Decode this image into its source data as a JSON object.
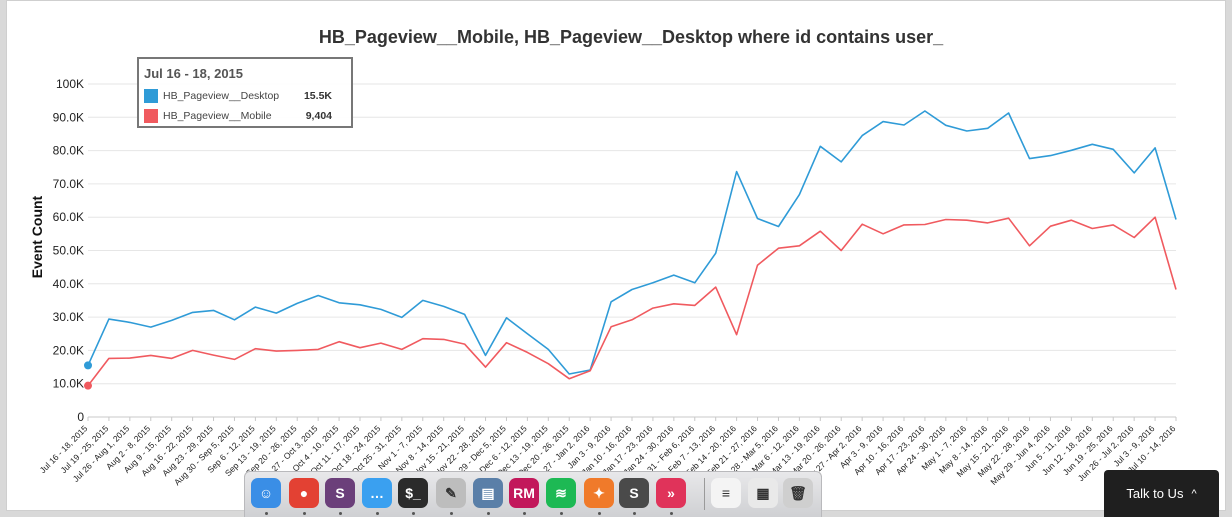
{
  "chart_data": {
    "type": "line",
    "title": "HB_Pageview__Mobile, HB_Pageview__Desktop where id contains user_",
    "ylabel": "Event Count",
    "xlabel": "",
    "ylim": [
      0,
      100000
    ],
    "yticks": [
      "0",
      "10.0K",
      "20.0K",
      "30.0K",
      "40.0K",
      "50.0K",
      "60.0K",
      "70.0K",
      "80.0K",
      "90.0K",
      "100K"
    ],
    "grid": true,
    "categories": [
      "Jul 16 - 18, 2015",
      "Jul 19 - 25, 2015",
      "Jul 26 - Aug 1, 2015",
      "Aug 2 - 8, 2015",
      "Aug 9 - 15, 2015",
      "Aug 16 - 22, 2015",
      "Aug 23 - 29, 2015",
      "Aug 30 - Sep 5, 2015",
      "Sep 6 - 12, 2015",
      "Sep 13 - 19, 2015",
      "Sep 20 - 26, 2015",
      "Sep 27 - Oct 3, 2015",
      "Oct 4 - 10, 2015",
      "Oct 11 - 17, 2015",
      "Oct 18 - 24, 2015",
      "Oct 25 - 31, 2015",
      "Nov 1 - 7, 2015",
      "Nov 8 - 14, 2015",
      "Nov 15 - 21, 2015",
      "Nov 22 - 28, 2015",
      "Nov 29 - Dec 5, 2015",
      "Dec 6 - 12, 2015",
      "Dec 13 - 19, 2015",
      "Dec 20 - 26, 2015",
      "Dec 27 - Jan 2, 2016",
      "Jan 3 - 9, 2016",
      "Jan 10 - 16, 2016",
      "Jan 17 - 23, 2016",
      "Jan 24 - 30, 2016",
      "Jan 31 - Feb 6, 2016",
      "Feb 7 - 13, 2016",
      "Feb 14 - 20, 2016",
      "Feb 21 - 27, 2016",
      "Feb 28 - Mar 5, 2016",
      "Mar 6 - 12, 2016",
      "Mar 13 - 19, 2016",
      "Mar 20 - 26, 2016",
      "Mar 27 - Apr 2, 2016",
      "Apr 3 - 9, 2016",
      "Apr 10 - 16, 2016",
      "Apr 17 - 23, 2016",
      "Apr 24 - 30, 2016",
      "May 1 - 7, 2016",
      "May 8 - 14, 2016",
      "May 15 - 21, 2016",
      "May 22 - 28, 2016",
      "May 29 - Jun 4, 2016",
      "Jun 5 - 11, 2016",
      "Jun 12 - 18, 2016",
      "Jun 19 - 25, 2016",
      "Jun 26 - Jul 2, 2016",
      "Jul 3 - 9, 2016",
      "Jul 10 - 14, 2016"
    ],
    "series": [
      {
        "name": "HB_Pageview__Desktop",
        "color": "#2f9bd7",
        "values": [
          15500,
          29400,
          28400,
          27000,
          29000,
          31400,
          32000,
          29200,
          33000,
          31200,
          34100,
          36500,
          34300,
          33700,
          32300,
          29900,
          35000,
          33200,
          30800,
          18500,
          29800,
          25000,
          20300,
          12900,
          14100,
          34600,
          38300,
          40300,
          42600,
          40300,
          49200,
          73700,
          59600,
          57200,
          66800,
          81300,
          76600,
          84500,
          88700,
          87700,
          91900,
          87600,
          85900,
          86700,
          91300,
          77600,
          78500,
          80100,
          81900,
          80400,
          73300,
          80800,
          59300
        ]
      },
      {
        "name": "HB_Pageview__Mobile",
        "color": "#f05a5f",
        "values": [
          9404,
          17600,
          17700,
          18500,
          17600,
          20000,
          18600,
          17300,
          20500,
          19800,
          20000,
          20300,
          22600,
          20800,
          22200,
          20300,
          23500,
          23300,
          21900,
          15000,
          22300,
          19400,
          16000,
          11500,
          13900,
          27100,
          29200,
          32700,
          34000,
          33500,
          39000,
          24700,
          45600,
          50700,
          51400,
          55800,
          50000,
          57900,
          55000,
          57700,
          57800,
          59300,
          59100,
          58300,
          59700,
          51400,
          57300,
          59100,
          56600,
          57700,
          53900,
          60000,
          38300
        ]
      }
    ]
  },
  "tooltip": {
    "title": "Jul 16 - 18, 2015",
    "rows": [
      {
        "name": "HB_Pageview__Desktop",
        "value": "15.5K",
        "color": "#2f9bd7"
      },
      {
        "name": "HB_Pageview__Mobile",
        "value": "9,404",
        "color": "#f05a5f"
      }
    ]
  },
  "dock": {
    "apps": [
      {
        "icon": "finder-icon",
        "glyph": "☺",
        "color": "#3a8ee6"
      },
      {
        "icon": "chrome-icon",
        "glyph": "●",
        "color": "#e34133"
      },
      {
        "icon": "slack-icon",
        "glyph": "S",
        "color": "#6b3f7a"
      },
      {
        "icon": "messages-icon",
        "glyph": "…",
        "color": "#3aa0f0"
      },
      {
        "icon": "terminal-icon",
        "glyph": "$_",
        "color": "#2b2b2b"
      },
      {
        "icon": "textedit-icon",
        "glyph": "✎",
        "color": "#bdbdbd"
      },
      {
        "icon": "preview-icon",
        "glyph": "▤",
        "color": "#5a7fa8"
      },
      {
        "icon": "rubymine-icon",
        "glyph": "RM",
        "color": "#c2185b"
      },
      {
        "icon": "spotify-icon",
        "glyph": "≋",
        "color": "#1db954"
      },
      {
        "icon": "postman-icon",
        "glyph": "✦",
        "color": "#f07a2a"
      },
      {
        "icon": "sublime-icon",
        "glyph": "S",
        "color": "#4a4a4a"
      },
      {
        "icon": "airmail-icon",
        "glyph": "»",
        "color": "#e0335a"
      },
      {
        "icon": "screenshot-thumb-icon",
        "glyph": "≡",
        "color": "#f4f4f4"
      },
      {
        "icon": "downloads-stack-icon",
        "glyph": "▦",
        "color": "#e9e9e9"
      },
      {
        "icon": "trash-icon",
        "glyph": "🗑",
        "color": "#cfcfcf"
      }
    ]
  },
  "talk_button": {
    "label": "Talk to Us"
  }
}
